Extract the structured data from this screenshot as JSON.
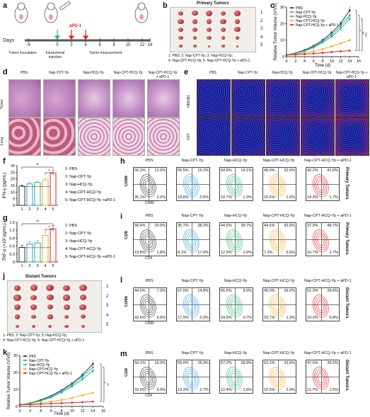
{
  "panel_labels": {
    "a": "a",
    "b": "b",
    "c": "c",
    "d": "d",
    "e": "e",
    "f": "f",
    "g": "g",
    "h": "h",
    "i": "i",
    "j": "j",
    "k": "k",
    "l": "l",
    "m": "m"
  },
  "a": {
    "days_label": "Days",
    "days": [
      "-9",
      "0",
      "2",
      "4",
      "6",
      "8",
      "10",
      "12",
      "14"
    ],
    "steps": [
      "Tumor inoculation",
      "Intratumoral injection",
      "Tumor measurement"
    ],
    "apd1": "aPD-1"
  },
  "b": {
    "title": "Primary Tumors",
    "rows": [
      "1",
      "2",
      "3",
      "4",
      "5"
    ],
    "legend1": "1: PBS; 2: Nap-CPT-Yp; 3: Nap-HCQ-Yp;",
    "legend2": "4: Nap-CPT-HCQ-Yp; 5: Nap-CPT-HCQ-Yp + aPD-1"
  },
  "j": {
    "title": "Distant Tumors",
    "rows": [
      "1",
      "2",
      "3",
      "4",
      "5"
    ],
    "legend1": "1: PBS; 2: Nap-CPT-Yp; 3: Nap-HCQ-Yp;",
    "legend2": "4: Nap-CPT-HCQ-Yp; 5: Nap-CPT-HCQ-Yp + aPD-1"
  },
  "d": {
    "cols": [
      "PBS",
      "Nap-CPT-Yp",
      "Nap-HCQ-Yp",
      "Nap-CPT-HCQ-Yp",
      "Nap-CPT-HCQ-Yp + aPD-1"
    ],
    "rows": [
      "Tumor",
      "Lung"
    ]
  },
  "e": {
    "cols": [
      "PBS",
      "Nap-CPT-Yp",
      "Nap-HCQ-Yp",
      "Nap-CPT-HCQ-Yp",
      "Nap-CPT-HCQ-Yp + aPD-1"
    ],
    "rows": [
      "HMGB1",
      "CRT"
    ]
  },
  "groups_short": [
    "PBS",
    "Nap-CPT-Yp",
    "Nap-HCQ-Yp",
    "Nap-CPT-HCQ-Yp",
    "Nap-CPT-HCQ-Yp + aPD-1"
  ],
  "group_list": [
    "1: PBS",
    "2: Nap-CPT-Yp",
    "3: Nap-HCQ-Yp",
    "4: Nap-CPT-HCQ-Yp",
    "5: Nap-CPT-HCQ-Yp +aPD-1"
  ],
  "flow": {
    "h": {
      "side": "Primary Tumors",
      "ylab": "CD86",
      "xlab": "CD80",
      "vals": [
        [
          "50.1%",
          "12.6%",
          "35.1%",
          "2.2%"
        ],
        [
          "65.5%",
          "15.2%",
          "18.8%",
          "0.5%"
        ],
        [
          "64.9%",
          "14.1%",
          "19.7%",
          "1.3%"
        ],
        [
          "48.9%",
          "32.6%",
          "16.6%",
          "1.9%"
        ],
        [
          "42.2%",
          "41.8%",
          "14.3%",
          "1.7%"
        ]
      ]
    },
    "i": {
      "side": "Primary Tumors",
      "ylab": "CD8",
      "xlab": "CD4",
      "vals": [
        [
          "58.4%",
          "20.0%",
          "19.8%",
          "1.8%"
        ],
        [
          "35.7%",
          "38.3%",
          "8.1%",
          "17.9%"
        ],
        [
          "44.5%",
          "39.7%",
          "12.9%",
          "2.9%"
        ],
        [
          "44.6%",
          "42.6%",
          "7.3%",
          "5.5%"
        ],
        [
          "37.9%",
          "48.7%",
          "10.7%",
          "2.7%"
        ]
      ]
    },
    "l": {
      "side": "Distant Tumors",
      "ylab": "CD86",
      "xlab": "CD80",
      "vals": [
        [
          "44.6%",
          "7.3%",
          "42.6%",
          "5.6%"
        ],
        [
          "67.0%",
          "14.8%",
          "17.9%",
          "0.3%"
        ],
        [
          "65.5%",
          "9.0%",
          "24.8%",
          "0.7%"
        ],
        [
          "49.0%",
          "26.0%",
          "23.7%",
          "1.3%"
        ],
        [
          "51.3%",
          "28.6%",
          "19.3%",
          "0.8%"
        ]
      ]
    },
    "m": {
      "side": "Distant Tumors",
      "ylab": "CD8",
      "xlab": "CD4",
      "vals": [
        [
          "50.1%",
          "16.0%",
          "33.0%",
          "0.9%"
        ],
        [
          "59.0%",
          "25.0%",
          "13.3%",
          "2.7%"
        ],
        [
          "57.2%",
          "28.9%",
          "12.4%",
          "1.6%"
        ],
        [
          "53.1%",
          "33.5%",
          "10.5%",
          "2.9%"
        ],
        [
          "47.6%",
          "39.2%",
          "11.7%",
          "1.5%"
        ]
      ]
    }
  },
  "colors": [
    "#333333",
    "#29a3d6",
    "#2bb673",
    "#f5a623",
    "#e0201e"
  ],
  "chart_data": [
    {
      "id": "c",
      "type": "line",
      "xlabel": "Time (d)",
      "ylabel": "Relative Tumor Volume (V/V0)",
      "x": [
        0,
        2,
        4,
        6,
        8,
        10,
        12,
        14
      ],
      "xlim": [
        0,
        16
      ],
      "ylim": [
        0,
        30
      ],
      "xticks": [
        0,
        2,
        4,
        6,
        8,
        10,
        12,
        14,
        16
      ],
      "yticks": [
        0,
        10,
        20,
        30
      ],
      "legend": "top-left",
      "series": [
        {
          "name": "PBS",
          "values": [
            1,
            2.2,
            4,
            6.5,
            10,
            14.5,
            20,
            28
          ]
        },
        {
          "name": "Nap-CPT-Yp",
          "values": [
            1,
            2,
            3.6,
            6,
            9.2,
            13.2,
            18.5,
            25
          ]
        },
        {
          "name": "Nap-HCQ-Yp",
          "values": [
            1,
            1.9,
            3.3,
            5.5,
            8.5,
            12,
            17,
            23
          ]
        },
        {
          "name": "Nap-CPT-HCQ-Yp",
          "values": [
            1,
            1.5,
            2.3,
            3.3,
            4.6,
            6.2,
            8,
            10
          ]
        },
        {
          "name": "Nap-CPT-HCQ-Yp + aPD-1",
          "values": [
            1,
            1.2,
            1.5,
            1.9,
            2.3,
            2.8,
            3.2,
            3.6
          ]
        }
      ],
      "sig": [
        "*",
        "**",
        "***"
      ]
    },
    {
      "id": "k",
      "type": "line",
      "xlabel": "Time (d)",
      "ylabel": "Relative Tumor Volume (V/V0)",
      "x": [
        0,
        2,
        4,
        6,
        8,
        10,
        12,
        14
      ],
      "xlim": [
        0,
        16
      ],
      "ylim": [
        0,
        30
      ],
      "xticks": [
        0,
        2,
        4,
        6,
        8,
        10,
        12,
        14,
        16
      ],
      "yticks": [
        0,
        10,
        20,
        30
      ],
      "legend": "top-left",
      "series": [
        {
          "name": "PBS",
          "values": [
            1,
            2,
            3.8,
            6.2,
            9.5,
            13.5,
            18.5,
            25
          ]
        },
        {
          "name": "Nap-CPT-Yp",
          "values": [
            1,
            1.9,
            3.5,
            5.8,
            9,
            12.8,
            17.5,
            23
          ]
        },
        {
          "name": "Nap-HCQ-Yp",
          "values": [
            1,
            1.8,
            3.2,
            5.3,
            8.2,
            11.8,
            16,
            21
          ]
        },
        {
          "name": "Nap-CPT-HCQ-Yp",
          "values": [
            1,
            1.4,
            2,
            2.8,
            3.8,
            5,
            6.5,
            8
          ]
        },
        {
          "name": "Nap-CPT-HCQ-Yp + aPD-1",
          "values": [
            1,
            1.1,
            1.3,
            1.6,
            1.9,
            2.2,
            2.5,
            2.8
          ]
        }
      ],
      "sig": [
        "*",
        "**"
      ]
    },
    {
      "id": "f",
      "type": "bar",
      "ylabel": "IFN-γ (pg/mL)",
      "categories": [
        "1",
        "2",
        "3",
        "4",
        "5"
      ],
      "values": [
        14.5,
        16.2,
        17.3,
        19.2,
        24.5
      ],
      "errors": [
        0.8,
        1,
        1,
        1.4,
        2
      ],
      "ylim": [
        0,
        30
      ],
      "yticks": [
        0,
        5,
        10,
        15,
        20,
        25,
        30
      ],
      "sig": [
        "**",
        "*"
      ]
    },
    {
      "id": "g",
      "type": "bar",
      "ylabel": "TNF-α (×10² pg/mL)",
      "categories": [
        "1",
        "2",
        "3",
        "4",
        "5"
      ],
      "values": [
        0.55,
        0.68,
        0.72,
        1.0,
        1.25
      ],
      "errors": [
        0.08,
        0.08,
        0.1,
        0.1,
        0.12
      ],
      "ylim": [
        0,
        1.5
      ],
      "yticks": [
        0,
        0.3,
        0.6,
        0.9,
        1.2,
        1.5
      ],
      "sig": [
        "**",
        "*"
      ]
    }
  ]
}
